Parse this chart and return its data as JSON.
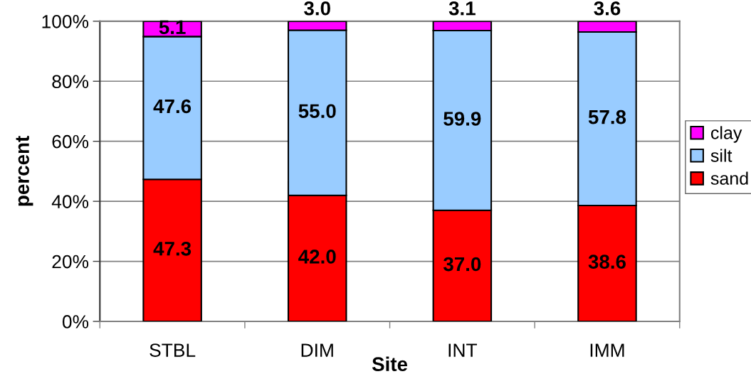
{
  "chart_data": {
    "type": "bar",
    "stacked": true,
    "xlabel": "Site",
    "ylabel": "percent",
    "categories": [
      "STBL",
      "DIM",
      "INT",
      "IMM"
    ],
    "series": [
      {
        "name": "sand",
        "color": "#ff0000",
        "values": [
          47.3,
          42.0,
          37.0,
          38.6
        ],
        "value_labels": [
          "47.3",
          "42.0",
          "37.0",
          "38.6"
        ]
      },
      {
        "name": "silt",
        "color": "#99ccff",
        "values": [
          47.6,
          55.0,
          59.9,
          57.8
        ],
        "value_labels": [
          "47.6",
          "55.0",
          "59.9",
          "57.8"
        ]
      },
      {
        "name": "clay",
        "color": "#ff00ff",
        "values": [
          5.1,
          3.0,
          3.1,
          3.6
        ],
        "value_labels": [
          "5.1",
          "3.0",
          "3.1",
          "3.6"
        ]
      }
    ],
    "ylim": [
      0,
      100
    ],
    "yticks": [
      {
        "value": 0,
        "label": "0%"
      },
      {
        "value": 20,
        "label": "20%"
      },
      {
        "value": 40,
        "label": "40%"
      },
      {
        "value": 60,
        "label": "60%"
      },
      {
        "value": 80,
        "label": "80%"
      },
      {
        "value": 100,
        "label": "100%"
      }
    ],
    "grid": "y",
    "legend": "right"
  }
}
